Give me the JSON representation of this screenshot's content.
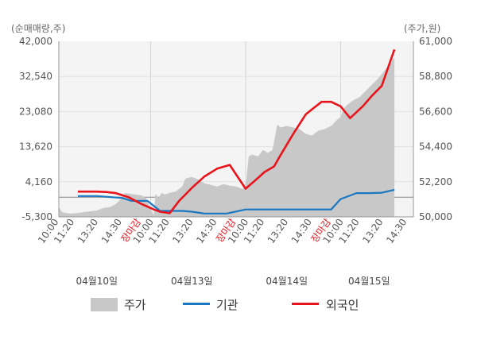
{
  "chart_data": {
    "type": "line",
    "left_unit": "(순매매량,주)",
    "right_unit": "(주가,원)",
    "left_ticks": [
      "42,000",
      "32,540",
      "23,080",
      "13,620",
      "4,160",
      "-5,300"
    ],
    "right_ticks": [
      "61,000",
      "58,800",
      "56,600",
      "54,400",
      "52,200",
      "50,000"
    ],
    "ylim_left": [
      -5300,
      42000
    ],
    "ylim_right": [
      50000,
      61000
    ],
    "x_ticks": [
      {
        "label": "10:00",
        "pos": 0.0,
        "highlight": false
      },
      {
        "label": "11:20",
        "pos": 0.5,
        "highlight": false
      },
      {
        "label": "13:20",
        "pos": 1.25,
        "highlight": false
      },
      {
        "label": "14:30",
        "pos": 2.0,
        "highlight": false
      },
      {
        "label": "장마감",
        "pos": 2.6,
        "highlight": true
      },
      {
        "label": "10:00",
        "pos": 3.0,
        "highlight": false
      },
      {
        "label": "11:20",
        "pos": 3.5,
        "highlight": false
      },
      {
        "label": "13:20",
        "pos": 4.25,
        "highlight": false
      },
      {
        "label": "14:30",
        "pos": 5.0,
        "highlight": false
      },
      {
        "label": "장마감",
        "pos": 5.6,
        "highlight": true
      },
      {
        "label": "10:00",
        "pos": 6.0,
        "highlight": false
      },
      {
        "label": "11:20",
        "pos": 6.5,
        "highlight": false
      },
      {
        "label": "13:20",
        "pos": 7.25,
        "highlight": false
      },
      {
        "label": "14:30",
        "pos": 8.0,
        "highlight": false
      },
      {
        "label": "장마감",
        "pos": 8.6,
        "highlight": true
      },
      {
        "label": "10:00",
        "pos": 9.0,
        "highlight": false
      },
      {
        "label": "11:20",
        "pos": 9.5,
        "highlight": false
      },
      {
        "label": "13:20",
        "pos": 10.25,
        "highlight": false
      },
      {
        "label": "14:30",
        "pos": 11.0,
        "highlight": false
      }
    ],
    "x_range": [
      0,
      11.2
    ],
    "dates": [
      {
        "label": "04월10일",
        "pos": 1.2
      },
      {
        "label": "04월13일",
        "pos": 4.2
      },
      {
        "label": "04월14일",
        "pos": 7.2
      },
      {
        "label": "04월15일",
        "pos": 9.8
      }
    ],
    "day_dividers": [
      2.9,
      5.9,
      8.9
    ],
    "series": [
      {
        "name": "주가",
        "kind": "area",
        "axis": "right",
        "color": "#c8c8c8",
        "x": [
          0,
          0.1,
          0.2,
          0.4,
          0.6,
          0.8,
          1.0,
          1.2,
          1.4,
          1.6,
          1.8,
          2.0,
          2.1,
          2.25,
          2.4,
          2.6,
          2.75,
          2.9,
          3.0,
          3.05,
          3.15,
          3.25,
          3.35,
          3.5,
          3.7,
          3.9,
          4.0,
          4.2,
          4.4,
          4.6,
          4.8,
          5.0,
          5.2,
          5.4,
          5.6,
          5.8,
          5.9,
          6.0,
          6.1,
          6.3,
          6.45,
          6.6,
          6.75,
          6.9,
          7.0,
          7.2,
          7.4,
          7.6,
          7.8,
          8.0,
          8.2,
          8.4,
          8.6,
          8.8,
          8.9,
          9.0,
          9.1,
          9.3,
          9.5,
          9.7,
          9.9,
          10.1,
          10.3,
          10.5,
          10.6
        ],
        "y": [
          50600,
          50300,
          50250,
          50200,
          50250,
          50300,
          50350,
          50400,
          50550,
          50600,
          50800,
          51200,
          51500,
          51450,
          51400,
          51350,
          51200,
          50500,
          50100,
          51450,
          51200,
          51500,
          51400,
          51500,
          51600,
          51900,
          52400,
          52500,
          52350,
          52100,
          52000,
          51900,
          52050,
          51950,
          51900,
          51750,
          51850,
          53800,
          53900,
          53800,
          54200,
          54000,
          54200,
          55800,
          55600,
          55700,
          55600,
          55500,
          55200,
          55100,
          55400,
          55500,
          55700,
          56100,
          56250,
          56800,
          57000,
          57300,
          57500,
          57900,
          58300,
          58700,
          59200,
          59700,
          60000
        ]
      },
      {
        "name": "기관",
        "kind": "line",
        "axis": "left",
        "color": "#1a78c2",
        "x": [
          0.6,
          1.2,
          2.0,
          2.3,
          2.8,
          3.2,
          3.5,
          3.9,
          4.2,
          4.6,
          5.0,
          5.3,
          5.9,
          6.2,
          6.6,
          7.0,
          7.4,
          7.8,
          8.0,
          8.3,
          8.6,
          8.9,
          9.4,
          9.8,
          10.2,
          10.6
        ],
        "y": [
          300,
          300,
          -200,
          -1000,
          -1000,
          -3700,
          -3700,
          -3700,
          -3900,
          -4400,
          -4400,
          -4400,
          -3300,
          -3300,
          -3300,
          -3300,
          -3300,
          -3300,
          -3300,
          -3300,
          -3300,
          -500,
          1100,
          1100,
          1200,
          2000
        ]
      },
      {
        "name": "외국인",
        "kind": "line",
        "axis": "left",
        "color": "#e8131b",
        "x": [
          0.6,
          1.2,
          1.5,
          1.8,
          2.2,
          2.6,
          3.0,
          3.2,
          3.5,
          3.8,
          4.2,
          4.6,
          5.0,
          5.4,
          5.9,
          6.2,
          6.5,
          6.8,
          7.0,
          7.4,
          7.8,
          8.0,
          8.3,
          8.6,
          8.9,
          9.2,
          9.6,
          9.9,
          10.2,
          10.6
        ],
        "y": [
          1500,
          1500,
          1400,
          1100,
          0,
          -1800,
          -3300,
          -3900,
          -4300,
          -1000,
          2500,
          5600,
          7700,
          8700,
          2300,
          4500,
          6800,
          8300,
          11300,
          17000,
          22300,
          23700,
          25700,
          25700,
          24500,
          21300,
          24500,
          27400,
          30000,
          39800
        ]
      }
    ]
  }
}
